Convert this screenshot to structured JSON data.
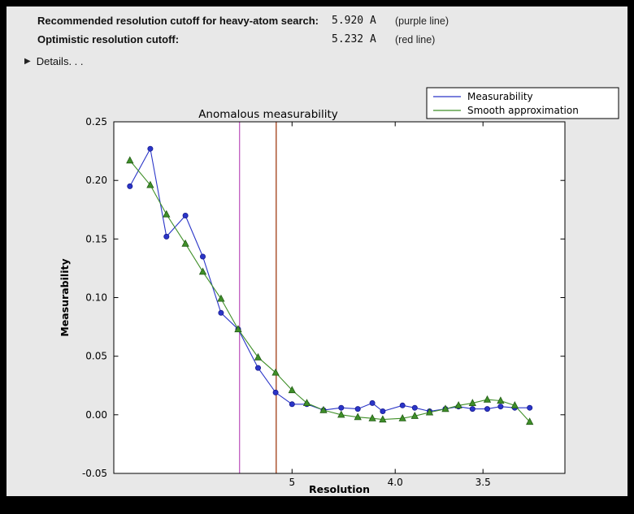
{
  "header": {
    "rows": [
      {
        "label": "Recommended resolution cutoff for heavy-atom search:",
        "value": "5.920 A",
        "note": "(purple line)"
      },
      {
        "label": "Optimistic resolution cutoff:",
        "value": "5.232 A",
        "note": "(red line)"
      }
    ],
    "details_label": "Details. . .",
    "details_triangle": "▶"
  },
  "chart_data": {
    "type": "line",
    "title": "Anomalous measurability",
    "xlabel": "Resolution",
    "ylabel": "Measurability",
    "grid": false,
    "x_axis": {
      "scale": "inverse_d_squared",
      "d_left": 30.0,
      "d_right": 3.17,
      "ticks": [
        {
          "d": 5.0,
          "label": "5"
        },
        {
          "d": 4.0,
          "label": "4.0"
        },
        {
          "d": 3.5,
          "label": "3.5"
        }
      ]
    },
    "ylim": [
      -0.05,
      0.25
    ],
    "y_ticks": [
      {
        "v": -0.05,
        "label": "-0.05"
      },
      {
        "v": 0.0,
        "label": "0.00"
      },
      {
        "v": 0.05,
        "label": "0.05"
      },
      {
        "v": 0.1,
        "label": "0.10"
      },
      {
        "v": 0.15,
        "label": "0.15"
      },
      {
        "v": 0.2,
        "label": "0.20"
      },
      {
        "v": 0.25,
        "label": "0.25"
      }
    ],
    "x_d": [
      14.7,
      10.5,
      8.91,
      7.73,
      6.98,
      6.39,
      5.95,
      5.54,
      5.24,
      5.0,
      4.81,
      4.62,
      4.44,
      4.29,
      4.17,
      4.09,
      3.95,
      3.87,
      3.78,
      3.69,
      3.62,
      3.55,
      3.48,
      3.42,
      3.36,
      3.3
    ],
    "series": [
      {
        "name": "Measurability",
        "color": "#2a35c8",
        "edge": "#181b8f",
        "marker": "circle",
        "values": [
          0.195,
          0.227,
          0.152,
          0.17,
          0.135,
          0.087,
          0.073,
          0.04,
          0.019,
          0.009,
          0.009,
          0.004,
          0.006,
          0.005,
          0.01,
          0.003,
          0.008,
          0.006,
          0.003,
          0.005,
          0.007,
          0.005,
          0.005,
          0.007,
          0.006,
          0.006
        ]
      },
      {
        "name": "Smooth approximation",
        "color": "#3f8f28",
        "edge": "#225c16",
        "marker": "triangle",
        "values": [
          0.217,
          0.196,
          0.171,
          0.146,
          0.122,
          0.099,
          0.073,
          0.049,
          0.036,
          0.021,
          0.01,
          0.004,
          0.0,
          -0.002,
          -0.003,
          -0.004,
          -0.003,
          -0.001,
          0.002,
          0.005,
          0.008,
          0.01,
          0.013,
          0.012,
          0.008,
          -0.006
        ]
      }
    ],
    "vlines": [
      {
        "name": "recommended-cutoff-line",
        "d": 5.92,
        "color": "#c05bc0"
      },
      {
        "name": "optimistic-cutoff-line",
        "d": 5.232,
        "color": "#a03c14"
      }
    ],
    "legend": {
      "position": "top-right",
      "entries": [
        "Measurability",
        "Smooth approximation"
      ]
    }
  },
  "colors": {
    "frame": "#000000",
    "panel_bg": "#e8e8e8",
    "plot_bg": "#ffffff"
  }
}
